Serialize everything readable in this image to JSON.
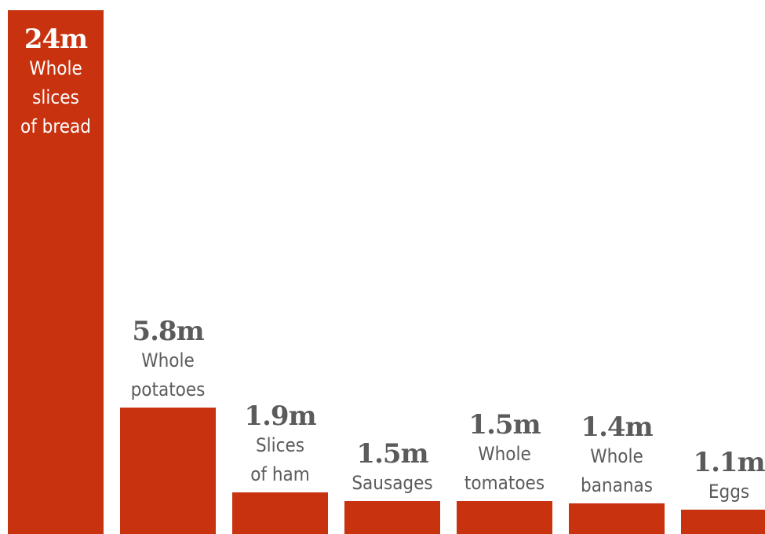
{
  "chart_data": {
    "type": "bar",
    "colors": {
      "bar": "#c8320f",
      "text": "#5b5b5b",
      "inside_text": "#ffffff"
    },
    "unit": "m",
    "categories": [
      "Whole slices of bread",
      "Whole potatoes",
      "Slices of ham",
      "Sausages",
      "Whole tomatoes",
      "Whole bananas",
      "Eggs"
    ],
    "values": [
      24,
      5.8,
      1.9,
      1.5,
      1.5,
      1.4,
      1.1
    ],
    "bars": [
      {
        "value": 24,
        "value_label": "24m",
        "label_lines": [
          "Whole",
          "slices",
          "of bread"
        ]
      },
      {
        "value": 5.8,
        "value_label": "5.8m",
        "label_lines": [
          "Whole",
          "potatoes"
        ]
      },
      {
        "value": 1.9,
        "value_label": "1.9m",
        "label_lines": [
          "Slices",
          "of ham"
        ]
      },
      {
        "value": 1.5,
        "value_label": "1.5m",
        "label_lines": [
          "Sausages"
        ]
      },
      {
        "value": 1.5,
        "value_label": "1.5m",
        "label_lines": [
          "Whole",
          "tomatoes"
        ]
      },
      {
        "value": 1.4,
        "value_label": "1.4m",
        "label_lines": [
          "Whole",
          "bananas"
        ]
      },
      {
        "value": 1.1,
        "value_label": "1.1m",
        "label_lines": [
          "Eggs"
        ]
      }
    ],
    "title": "",
    "xlabel": "",
    "ylabel": "",
    "grid": false,
    "legend": "none"
  }
}
